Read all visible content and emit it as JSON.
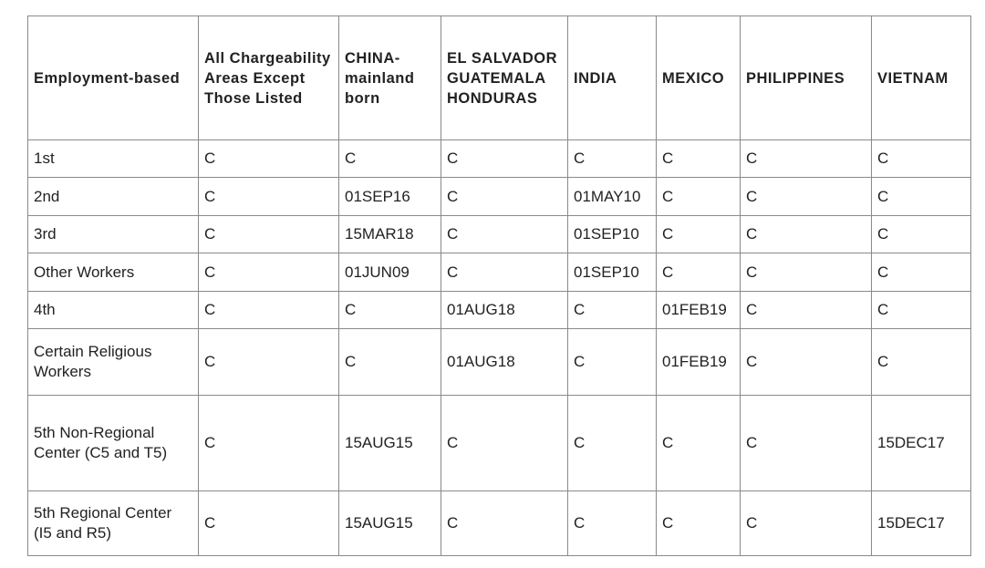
{
  "table": {
    "headers": [
      "Employment-based",
      "All Chargeability Areas Except Those Listed",
      "CHINA-mainland born",
      "EL SALVADOR GUATEMALA HONDURAS",
      "INDIA",
      "MEXICO",
      "PHILIPPINES",
      "VIETNAM"
    ],
    "rows": [
      [
        "1st",
        "C",
        "C",
        "C",
        "C",
        "C",
        "C",
        "C"
      ],
      [
        "2nd",
        "C",
        "01SEP16",
        "C",
        "01MAY10",
        "C",
        "C",
        "C"
      ],
      [
        "3rd",
        "C",
        "15MAR18",
        "C",
        "01SEP10",
        "C",
        "C",
        "C"
      ],
      [
        "Other Workers",
        "C",
        "01JUN09",
        "C",
        "01SEP10",
        "C",
        "C",
        "C"
      ],
      [
        "4th",
        "C",
        "C",
        "01AUG18",
        "C",
        "01FEB19",
        "C",
        "C"
      ],
      [
        "Certain Religious Workers",
        "C",
        "C",
        "01AUG18",
        "C",
        "01FEB19",
        "C",
        "C"
      ],
      [
        "5th Non-Regional Center (C5 and T5)",
        "C",
        "15AUG15",
        "C",
        "C",
        "C",
        "C",
        "15DEC17"
      ],
      [
        "5th Regional Center (I5 and R5)",
        "C",
        "15AUG15",
        "C",
        "C",
        "C",
        "C",
        "15DEC17"
      ]
    ]
  }
}
